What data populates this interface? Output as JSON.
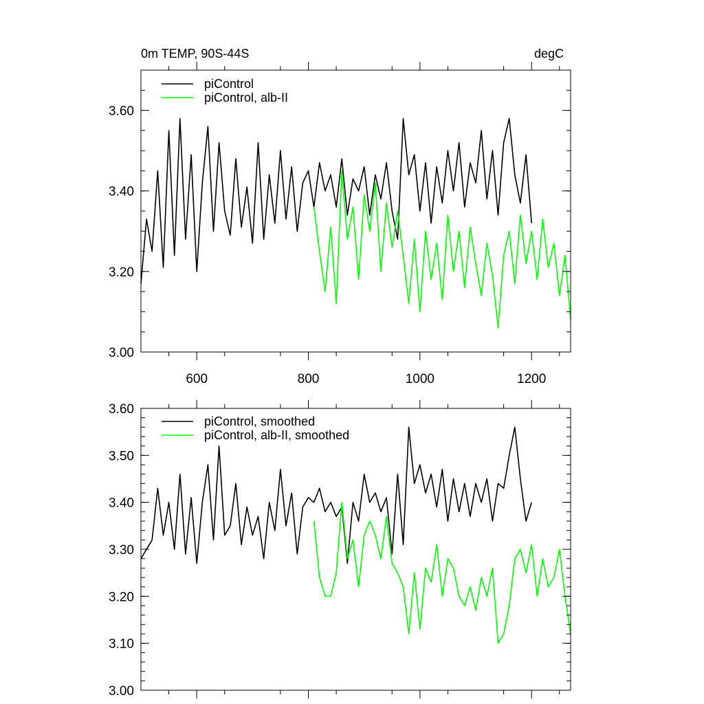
{
  "chart_data": [
    {
      "type": "line",
      "title": "0m TEMP, 90S-44S",
      "units": "degC",
      "xlabel": "",
      "ylabel": "",
      "xlim": [
        500,
        1270
      ],
      "ylim": [
        3.0,
        3.7
      ],
      "x_ticks": [
        600,
        800,
        1000,
        1200
      ],
      "x_tick_labels": [
        "600",
        "800",
        "1000",
        "1200"
      ],
      "x_minor_step": 50,
      "y_ticks": [
        3.0,
        3.2,
        3.4,
        3.6
      ],
      "y_tick_labels": [
        "3.00",
        "3.20",
        "3.40",
        "3.60"
      ],
      "y_minor_step": 0.05,
      "legend_position": "top-left",
      "grid": false,
      "series": [
        {
          "name": "piControl",
          "color": "#000000",
          "x": [
            500,
            510,
            520,
            530,
            540,
            550,
            560,
            570,
            580,
            590,
            600,
            610,
            620,
            630,
            640,
            650,
            660,
            670,
            680,
            690,
            700,
            710,
            720,
            730,
            740,
            750,
            760,
            770,
            780,
            790,
            800,
            810,
            820,
            830,
            840,
            850,
            860,
            870,
            880,
            890,
            900,
            910,
            920,
            930,
            940,
            950,
            960,
            970,
            980,
            990,
            1000,
            1010,
            1020,
            1030,
            1040,
            1050,
            1060,
            1070,
            1080,
            1090,
            1100,
            1110,
            1120,
            1130,
            1140,
            1150,
            1160,
            1170,
            1180,
            1190,
            1200
          ],
          "y": [
            3.17,
            3.33,
            3.25,
            3.45,
            3.21,
            3.55,
            3.24,
            3.58,
            3.28,
            3.49,
            3.2,
            3.42,
            3.56,
            3.3,
            3.52,
            3.35,
            3.29,
            3.48,
            3.31,
            3.41,
            3.27,
            3.52,
            3.28,
            3.44,
            3.32,
            3.5,
            3.33,
            3.46,
            3.3,
            3.42,
            3.45,
            3.36,
            3.47,
            3.4,
            3.44,
            3.36,
            3.48,
            3.34,
            3.43,
            3.4,
            3.46,
            3.34,
            3.44,
            3.38,
            3.47,
            3.35,
            3.28,
            3.58,
            3.44,
            3.49,
            3.35,
            3.47,
            3.32,
            3.46,
            3.37,
            3.5,
            3.4,
            3.52,
            3.36,
            3.47,
            3.42,
            3.55,
            3.38,
            3.5,
            3.34,
            3.52,
            3.58,
            3.44,
            3.37,
            3.49,
            3.32
          ]
        },
        {
          "name": "piControl, alb-II",
          "color": "#00ff00",
          "x": [
            810,
            820,
            830,
            840,
            850,
            860,
            870,
            880,
            890,
            900,
            910,
            920,
            930,
            940,
            950,
            960,
            970,
            980,
            990,
            1000,
            1010,
            1020,
            1030,
            1040,
            1050,
            1060,
            1070,
            1080,
            1090,
            1100,
            1110,
            1120,
            1130,
            1140,
            1150,
            1160,
            1170,
            1180,
            1190,
            1200,
            1210,
            1220,
            1230,
            1240,
            1250,
            1260,
            1270
          ],
          "y": [
            3.36,
            3.25,
            3.15,
            3.31,
            3.12,
            3.45,
            3.28,
            3.36,
            3.18,
            3.39,
            3.3,
            3.42,
            3.2,
            3.37,
            3.26,
            3.35,
            3.24,
            3.12,
            3.28,
            3.1,
            3.3,
            3.18,
            3.27,
            3.13,
            3.34,
            3.2,
            3.3,
            3.16,
            3.31,
            3.22,
            3.14,
            3.27,
            3.19,
            3.06,
            3.24,
            3.3,
            3.17,
            3.34,
            3.22,
            3.3,
            3.18,
            3.33,
            3.21,
            3.27,
            3.14,
            3.24,
            3.08
          ]
        }
      ]
    },
    {
      "type": "line",
      "title": "",
      "xlabel": "",
      "ylabel": "",
      "xlim": [
        500,
        1270
      ],
      "ylim": [
        3.0,
        3.6
      ],
      "x_ticks": [
        600,
        800,
        1000,
        1200
      ],
      "x_minor_step": 50,
      "y_ticks": [
        3.0,
        3.1,
        3.2,
        3.3,
        3.4,
        3.5,
        3.6
      ],
      "y_tick_labels": [
        "3.00",
        "3.10",
        "3.20",
        "3.30",
        "3.40",
        "3.50",
        "3.60"
      ],
      "y_minor_step": 0.02,
      "legend_position": "top-left",
      "grid": false,
      "series": [
        {
          "name": "piControl, smoothed",
          "color": "#000000",
          "x": [
            500,
            510,
            520,
            530,
            540,
            550,
            560,
            570,
            580,
            590,
            600,
            610,
            620,
            630,
            640,
            650,
            660,
            670,
            680,
            690,
            700,
            710,
            720,
            730,
            740,
            750,
            760,
            770,
            780,
            790,
            800,
            810,
            820,
            830,
            840,
            850,
            860,
            870,
            880,
            890,
            900,
            910,
            920,
            930,
            940,
            950,
            960,
            970,
            980,
            990,
            1000,
            1010,
            1020,
            1030,
            1040,
            1050,
            1060,
            1070,
            1080,
            1090,
            1100,
            1110,
            1120,
            1130,
            1140,
            1150,
            1160,
            1170,
            1180,
            1190,
            1200
          ],
          "y": [
            3.28,
            3.3,
            3.32,
            3.43,
            3.33,
            3.4,
            3.3,
            3.46,
            3.29,
            3.41,
            3.27,
            3.4,
            3.48,
            3.32,
            3.52,
            3.33,
            3.35,
            3.44,
            3.31,
            3.39,
            3.33,
            3.37,
            3.28,
            3.4,
            3.34,
            3.47,
            3.35,
            3.42,
            3.29,
            3.39,
            3.41,
            3.4,
            3.43,
            3.38,
            3.4,
            3.37,
            3.39,
            3.27,
            3.4,
            3.36,
            3.46,
            3.4,
            3.42,
            3.38,
            3.41,
            3.29,
            3.46,
            3.31,
            3.56,
            3.44,
            3.48,
            3.42,
            3.46,
            3.39,
            3.47,
            3.36,
            3.45,
            3.38,
            3.44,
            3.37,
            3.44,
            3.4,
            3.45,
            3.36,
            3.44,
            3.43,
            3.5,
            3.56,
            3.45,
            3.36,
            3.4
          ]
        },
        {
          "name": "piControl, alb-II, smoothed",
          "color": "#00ff00",
          "x": [
            810,
            820,
            830,
            840,
            850,
            860,
            870,
            880,
            890,
            900,
            910,
            920,
            930,
            940,
            950,
            960,
            970,
            980,
            990,
            1000,
            1010,
            1020,
            1030,
            1040,
            1050,
            1060,
            1070,
            1080,
            1090,
            1100,
            1110,
            1120,
            1130,
            1140,
            1150,
            1160,
            1170,
            1180,
            1190,
            1200,
            1210,
            1220,
            1230,
            1240,
            1250,
            1260,
            1270
          ],
          "y": [
            3.36,
            3.24,
            3.2,
            3.2,
            3.25,
            3.4,
            3.28,
            3.32,
            3.22,
            3.33,
            3.36,
            3.33,
            3.28,
            3.37,
            3.27,
            3.25,
            3.22,
            3.12,
            3.25,
            3.13,
            3.26,
            3.23,
            3.31,
            3.2,
            3.28,
            3.26,
            3.2,
            3.18,
            3.22,
            3.17,
            3.24,
            3.2,
            3.26,
            3.1,
            3.12,
            3.18,
            3.28,
            3.3,
            3.25,
            3.31,
            3.2,
            3.28,
            3.22,
            3.24,
            3.3,
            3.2,
            3.12
          ]
        }
      ]
    }
  ]
}
